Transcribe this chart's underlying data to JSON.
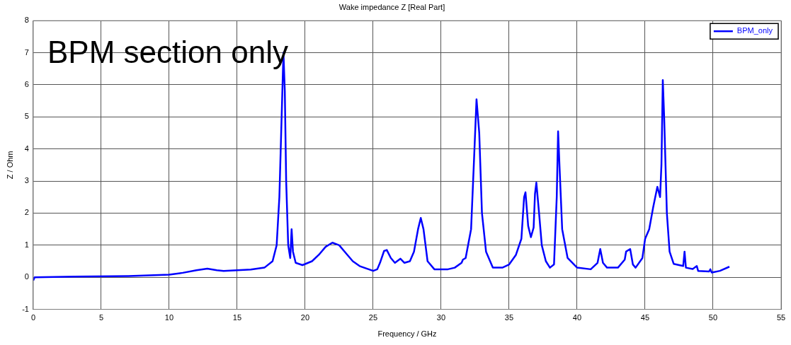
{
  "chart_data": {
    "type": "line",
    "title": "Wake impedance Z [Real Part]",
    "xlabel": "Frequency / GHz",
    "ylabel": "Z / Ohm",
    "annotations": [
      "BPM section only"
    ],
    "xlim": [
      0,
      55
    ],
    "xticks": [
      0,
      5,
      10,
      15,
      20,
      25,
      30,
      35,
      40,
      45,
      50,
      55
    ],
    "ylim": [
      -1,
      8
    ],
    "yticks": [
      -1,
      0,
      1,
      2,
      3,
      4,
      5,
      6,
      7,
      8
    ],
    "grid": true,
    "legend": "top right",
    "marker": "none",
    "line_style": "solid",
    "series": [
      {
        "name": "BPM_only",
        "color": "#0000ff",
        "x": [
          0,
          0.1,
          3,
          7,
          10,
          11,
          12,
          12.8,
          13.5,
          14,
          15,
          16,
          17,
          17.6,
          17.9,
          18.1,
          18.3,
          18.4,
          18.5,
          18.6,
          18.75,
          18.9,
          19.0,
          19.1,
          19.3,
          19.8,
          20.5,
          21,
          21.5,
          22,
          22.5,
          23,
          23.5,
          24,
          25,
          25.3,
          25.5,
          25.8,
          26.0,
          26.3,
          26.6,
          27.0,
          27.3,
          27.7,
          28.0,
          28.3,
          28.5,
          28.7,
          29.0,
          29.5,
          30.5,
          31,
          31.5,
          31.6,
          31.8,
          32.2,
          32.4,
          32.6,
          32.8,
          33,
          33.3,
          33.8,
          34.5,
          35.0,
          35.5,
          35.9,
          36.1,
          36.2,
          36.4,
          36.6,
          36.8,
          36.9,
          37.0,
          37.2,
          37.4,
          37.7,
          38.0,
          38.3,
          38.5,
          38.6,
          38.7,
          38.9,
          39.3,
          40,
          41,
          41.5,
          41.7,
          41.9,
          42.2,
          43,
          43.5,
          43.6,
          43.9,
          44.1,
          44.3,
          44.8,
          45.0,
          45.3,
          45.6,
          45.9,
          46.1,
          46.2,
          46.3,
          46.4,
          46.6,
          46.8,
          47.1,
          47.8,
          47.9,
          48.0,
          48.5,
          48.8,
          48.9,
          49.7,
          49.8,
          49.9,
          50.5,
          51.2
        ],
        "values": [
          -0.1,
          0,
          0.02,
          0.04,
          0.08,
          0.14,
          0.22,
          0.27,
          0.22,
          0.2,
          0.22,
          0.24,
          0.3,
          0.5,
          1.0,
          2.5,
          5.5,
          7.0,
          5.8,
          3.0,
          1.0,
          0.6,
          1.5,
          0.8,
          0.45,
          0.38,
          0.5,
          0.7,
          0.95,
          1.08,
          1.0,
          0.75,
          0.5,
          0.35,
          0.2,
          0.25,
          0.45,
          0.82,
          0.85,
          0.6,
          0.45,
          0.58,
          0.45,
          0.5,
          0.8,
          1.5,
          1.85,
          1.5,
          0.5,
          0.25,
          0.25,
          0.3,
          0.45,
          0.55,
          0.6,
          1.5,
          3.5,
          5.55,
          4.5,
          2.0,
          0.8,
          0.3,
          0.3,
          0.4,
          0.7,
          1.2,
          2.5,
          2.65,
          1.6,
          1.25,
          1.55,
          2.6,
          2.95,
          2.0,
          1.0,
          0.5,
          0.3,
          0.4,
          2.5,
          4.55,
          3.5,
          1.5,
          0.6,
          0.3,
          0.25,
          0.45,
          0.88,
          0.45,
          0.3,
          0.3,
          0.55,
          0.8,
          0.88,
          0.4,
          0.3,
          0.6,
          1.2,
          1.5,
          2.2,
          2.82,
          2.5,
          3.5,
          6.15,
          5.0,
          2.0,
          0.8,
          0.42,
          0.35,
          0.8,
          0.3,
          0.26,
          0.35,
          0.2,
          0.18,
          0.25,
          0.15,
          0.2,
          0.33
        ]
      }
    ]
  }
}
